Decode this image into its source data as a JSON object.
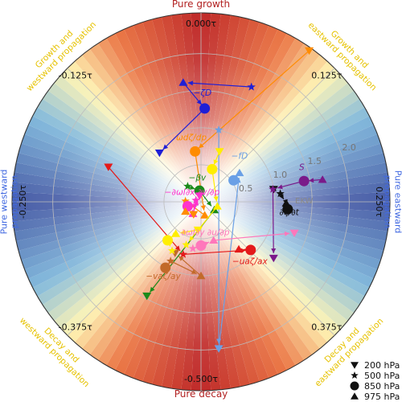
{
  "chart_data": {
    "type": "scatter",
    "projection": "polar",
    "angle_convention": "phase measured in fractions of a period tau; 0.000τ at top, positive values clockwise",
    "background": "quadrant shading: red/orange toward growth (top) and decay (bottom), blue toward pure eastward/westward propagation; bright yellow-white rings near the diagonals",
    "title_top": "Pure growth",
    "title_bottom": "Pure decay",
    "side_left": [
      "Pure westward",
      "propagation"
    ],
    "side_right": [
      "Pure eastward",
      "propagation"
    ],
    "quadrant_labels": {
      "top_left": [
        "Growth and",
        "westward propagation"
      ],
      "top_right": [
        "Growth and",
        "eastward propagation"
      ],
      "bottom_left": [
        "Decay and",
        "westward propagation"
      ],
      "bottom_right": [
        "Decay and",
        "eastward propagation"
      ]
    },
    "angle_ticks": [
      {
        "angle": 0.0,
        "label": "0.000τ"
      },
      {
        "angle": 0.125,
        "label": "0.125τ"
      },
      {
        "angle": 0.25,
        "label": "0.250τ"
      },
      {
        "angle": 0.375,
        "label": "0.375τ"
      },
      {
        "angle": 0.5,
        "label": "-0.500τ"
      },
      {
        "angle": -0.375,
        "label": "-0.375τ"
      },
      {
        "angle": -0.25,
        "label": "-0.250τ"
      },
      {
        "angle": -0.125,
        "label": "-0.125τ"
      }
    ],
    "radial_ticks": [
      {
        "value": 0.5,
        "label": "0.5"
      },
      {
        "value": 1.0,
        "label": "1.0"
      },
      {
        "value": 1.5,
        "label": "1.5"
      },
      {
        "value": 2.0,
        "label": "2.0"
      }
    ],
    "rmax": 2.55,
    "legend": {
      "position": "bottom-right",
      "items": [
        {
          "marker": "tri-down",
          "label": "200 hPa"
        },
        {
          "marker": "star",
          "label": "500 hPa"
        },
        {
          "marker": "circle",
          "label": "850 hPa"
        },
        {
          "marker": "tri-up",
          "label": "975 hPa"
        }
      ]
    },
    "series": [
      {
        "name": "−ζD",
        "color": "#1f1fd6",
        "label_anchor": [
          0.02,
          1.43
        ],
        "points": [
          {
            "level": "500 hPa",
            "x": 0.68,
            "y": 1.55
          },
          {
            "level": "975 hPa",
            "x": -0.24,
            "y": 1.61
          },
          {
            "level": "850 hPa",
            "x": 0.05,
            "y": 1.26
          },
          {
            "level": "200 hPa",
            "x": -0.56,
            "y": 0.66
          }
        ]
      },
      {
        "name": "ωdζ/dp",
        "color": "#ff8c00",
        "label_anchor": [
          -0.13,
          0.83
        ],
        "points": [
          {
            "level": "200 hPa",
            "x": 1.46,
            "y": 2.04
          },
          {
            "level": "850 hPa",
            "x": -0.08,
            "y": 0.68
          },
          {
            "level": "975 hPa",
            "x": 0.05,
            "y": -0.18
          },
          {
            "level": "500 hPa",
            "x": -0.21,
            "y": 0.01
          }
        ]
      },
      {
        "name": "−fD",
        "color": "#6aa0e6",
        "label_anchor": [
          0.52,
          0.58
        ],
        "points": [
          {
            "level": "500 hPa",
            "x": 0.24,
            "y": 0.97
          },
          {
            "level": "200 hPa",
            "x": 0.24,
            "y": -1.98
          },
          {
            "level": "975 hPa",
            "x": 0.52,
            "y": 0.39
          },
          {
            "level": "850 hPa",
            "x": 0.44,
            "y": 0.29
          }
        ]
      },
      {
        "name": "−βv",
        "color": "#1a8a1a",
        "label_anchor": [
          -0.05,
          0.29
        ],
        "points": [
          {
            "level": "500 hPa",
            "x": -0.18,
            "y": 0.21
          },
          {
            "level": "850 hPa",
            "x": -0.02,
            "y": 0.15
          },
          {
            "level": "975 hPa",
            "x": 0.18,
            "y": -0.11
          },
          {
            "level": "200 hPa",
            "x": -0.73,
            "y": -1.27
          }
        ]
      },
      {
        "name": "∂ζ/∂t",
        "color": "#111111",
        "label_anchor": [
          1.19,
          -0.18
        ],
        "points": [
          {
            "level": "200 hPa",
            "x": 0.98,
            "y": 0.17
          },
          {
            "level": "500 hPa",
            "x": 1.07,
            "y": 0.11
          },
          {
            "level": "975 hPa",
            "x": 1.15,
            "y": -0.02
          },
          {
            "level": "850 hPa",
            "x": 1.17,
            "y": -0.1
          }
        ]
      },
      {
        "name": "S",
        "color": "#7a1a8a",
        "label_anchor": [
          1.36,
          0.43
        ],
        "points": [
          {
            "level": "975 hPa",
            "x": 1.64,
            "y": 0.3
          },
          {
            "level": "850 hPa",
            "x": 1.39,
            "y": 0.28
          },
          {
            "level": "500 hPa",
            "x": 0.97,
            "y": 0.17
          },
          {
            "level": "200 hPa",
            "x": 0.98,
            "y": -0.76
          }
        ]
      },
      {
        "name": "−uaζ/ax",
        "color": "#e41a1a",
        "label_anchor": [
          0.66,
          -0.84
        ],
        "points": [
          {
            "level": "200 hPa",
            "x": -1.25,
            "y": 0.47
          },
          {
            "level": "500 hPa",
            "x": -0.24,
            "y": -0.71
          },
          {
            "level": "850 hPa",
            "x": 0.67,
            "y": -0.65
          },
          {
            "level": "975 hPa",
            "x": 0.51,
            "y": -0.64
          }
        ]
      },
      {
        "name": "−vaζ/ay",
        "color": "#c26a2a",
        "label_anchor": [
          -0.51,
          -1.04
        ],
        "points": [
          {
            "level": "850 hPa",
            "x": -0.48,
            "y": -0.89
          },
          {
            "level": "500 hPa",
            "x": -0.41,
            "y": -0.8
          },
          {
            "level": "975 hPa",
            "x": 0.0,
            "y": -1.0
          },
          {
            "level": "200 hPa",
            "x": -0.35,
            "y": -0.69
          }
        ]
      },
      {
        "name": "−∂ωI∂x ∂v/∂p",
        "color": "#ff33cc",
        "label_anchor": [
          -0.12,
          0.09
        ],
        "points": [
          {
            "level": "850 hPa",
            "x": -0.18,
            "y": -0.06
          },
          {
            "level": "500 hPa",
            "x": -0.07,
            "y": 0.02
          },
          {
            "level": "975 hPa",
            "x": -0.11,
            "y": -0.16
          },
          {
            "level": "200 hPa",
            "x": -0.02,
            "y": 0.08
          }
        ]
      },
      {
        "name": "∂ωI∂y ∂u/∂p",
        "color": "#ff77bb",
        "label_anchor": [
          0.06,
          -0.45
        ],
        "points": [
          {
            "level": "850 hPa",
            "x": 0.0,
            "y": -0.59
          },
          {
            "level": "500 hPa",
            "x": -0.11,
            "y": -0.63
          },
          {
            "level": "975 hPa",
            "x": 0.17,
            "y": -0.52
          },
          {
            "level": "200 hPa",
            "x": 1.26,
            "y": -0.42
          }
        ]
      },
      {
        "name": "",
        "color": "#ffee00",
        "points": [
          {
            "level": "200 hPa",
            "x": 0.25,
            "y": 0.68
          },
          {
            "level": "850 hPa",
            "x": 0.15,
            "y": 0.44
          },
          {
            "level": "975 hPa",
            "x": 0.22,
            "y": -0.06
          },
          {
            "level": "500 hPa",
            "x": -0.2,
            "y": -0.58
          }
        ]
      },
      {
        "name": "",
        "color": "#ffee00",
        "points": [
          {
            "level": "200 hPa",
            "x": -0.04,
            "y": -0.38
          },
          {
            "level": "975 hPa",
            "x": -0.34,
            "y": -0.43
          },
          {
            "level": "850 hPa",
            "x": -0.45,
            "y": -0.52
          },
          {
            "level": "500 hPa",
            "x": -0.39,
            "y": -0.66
          }
        ]
      },
      {
        "name": "",
        "color": "#ff8c00",
        "points": [
          {
            "level": "975 hPa",
            "x": -0.21,
            "y": -0.13
          },
          {
            "level": "200 hPa",
            "x": -0.1,
            "y": -0.17
          }
        ]
      }
    ],
    "extra_label": {
      "text": "EKW",
      "anchor": [
        1.27,
        -0.02
      ],
      "color": "#888888"
    }
  }
}
